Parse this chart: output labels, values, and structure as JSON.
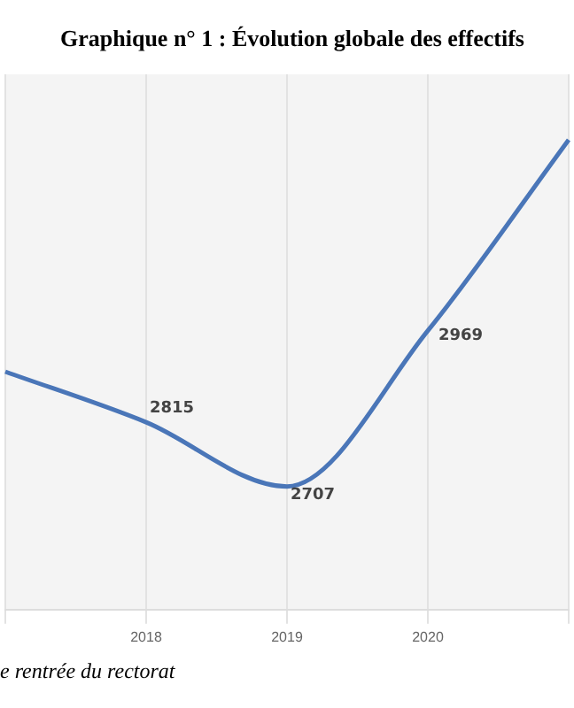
{
  "chart_data": {
    "type": "line",
    "title": "Graphique n° 1 : Évolution globale des effectifs",
    "categories": [
      null,
      "2018",
      "2019",
      "2020",
      null
    ],
    "series": [
      {
        "color": "#4a76b8",
        "values": [
          2900,
          2815,
          2707,
          2969,
          3290
        ],
        "value_labels": [
          null,
          "2815",
          "2707",
          "2969",
          null
        ]
      }
    ],
    "ylim": [
      2500,
      3400
    ],
    "tick_labels": "x",
    "grid": "x",
    "marker": "none",
    "line_style": "solid",
    "legend": false,
    "annotations": [
      "e rentrée du rectorat"
    ]
  }
}
